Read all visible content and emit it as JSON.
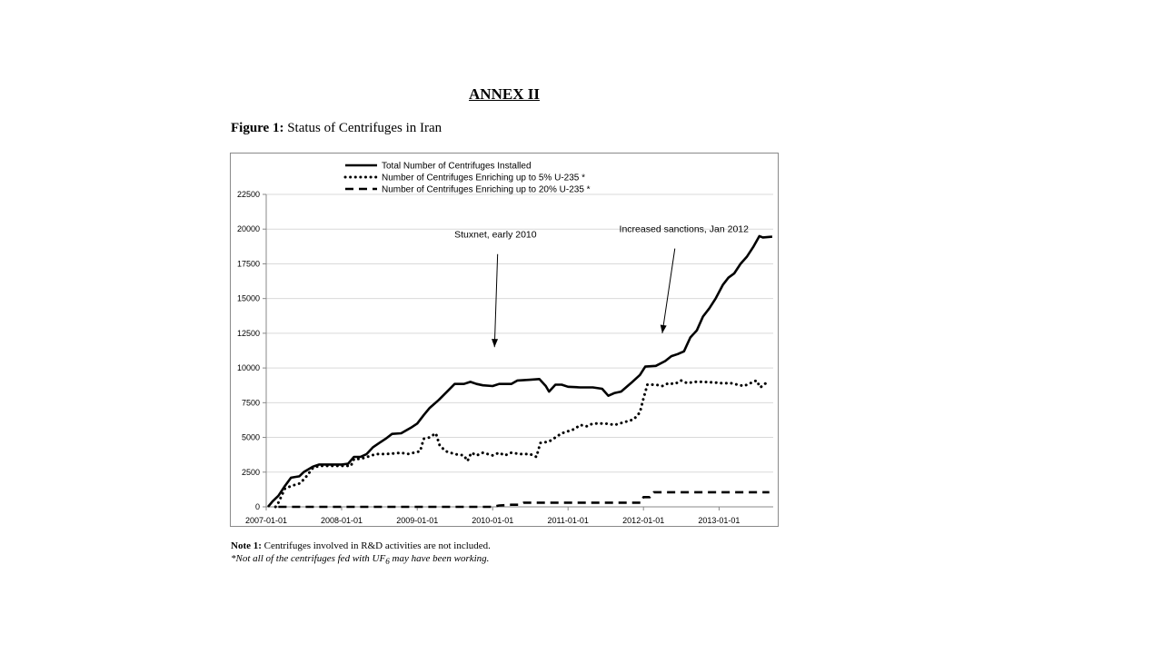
{
  "heading": "ANNEX II",
  "figure": {
    "label": "Figure 1:",
    "title": "Status of Centrifuges in Iran"
  },
  "notes": {
    "note1_label": "Note 1:",
    "note1_text": "Centrifuges involved in R&D activities are not included.",
    "footnote_a": "*Not all of the centrifuges fed with UF",
    "footnote_sub": "6",
    "footnote_b": "may have been working."
  },
  "chart_data": {
    "type": "line",
    "grid": true,
    "legend_position": "top-left",
    "ylim": [
      0,
      22500
    ],
    "yticks": [
      0,
      2500,
      5000,
      7500,
      10000,
      12500,
      15000,
      17500,
      20000,
      22500
    ],
    "xlim": [
      "2007-01-01",
      "2013-09-20"
    ],
    "xticks": [
      "2007-01-01",
      "2008-01-01",
      "2009-01-01",
      "2010-01-01",
      "2011-01-01",
      "2012-01-01",
      "2013-01-01"
    ],
    "series": [
      {
        "name": "Total Number of Centrifuges Installed",
        "style": "solid",
        "points": [
          [
            "2007-01-10",
            0
          ],
          [
            "2007-02-01",
            400
          ],
          [
            "2007-03-01",
            800
          ],
          [
            "2007-04-01",
            1500
          ],
          [
            "2007-05-01",
            2100
          ],
          [
            "2007-06-10",
            2200
          ],
          [
            "2007-07-01",
            2500
          ],
          [
            "2007-08-15",
            2900
          ],
          [
            "2007-09-15",
            3050
          ],
          [
            "2007-11-01",
            3050
          ],
          [
            "2008-01-01",
            3050
          ],
          [
            "2008-02-01",
            3100
          ],
          [
            "2008-03-01",
            3600
          ],
          [
            "2008-04-01",
            3600
          ],
          [
            "2008-05-01",
            3800
          ],
          [
            "2008-06-01",
            4300
          ],
          [
            "2008-07-01",
            4600
          ],
          [
            "2008-08-01",
            4900
          ],
          [
            "2008-09-01",
            5250
          ],
          [
            "2008-10-15",
            5300
          ],
          [
            "2008-12-01",
            5700
          ],
          [
            "2009-01-01",
            6000
          ],
          [
            "2009-02-01",
            6600
          ],
          [
            "2009-03-01",
            7100
          ],
          [
            "2009-04-15",
            7700
          ],
          [
            "2009-06-01",
            8400
          ],
          [
            "2009-07-01",
            8850
          ],
          [
            "2009-08-15",
            8850
          ],
          [
            "2009-09-15",
            9000
          ],
          [
            "2009-10-15",
            8850
          ],
          [
            "2009-11-15",
            8750
          ],
          [
            "2010-01-01",
            8700
          ],
          [
            "2010-02-01",
            8850
          ],
          [
            "2010-04-01",
            8850
          ],
          [
            "2010-05-01",
            9100
          ],
          [
            "2010-07-01",
            9150
          ],
          [
            "2010-08-15",
            9200
          ],
          [
            "2010-09-15",
            8700
          ],
          [
            "2010-10-01",
            8300
          ],
          [
            "2010-11-01",
            8800
          ],
          [
            "2010-12-01",
            8800
          ],
          [
            "2011-01-01",
            8650
          ],
          [
            "2011-03-01",
            8600
          ],
          [
            "2011-05-01",
            8600
          ],
          [
            "2011-06-15",
            8500
          ],
          [
            "2011-07-15",
            8000
          ],
          [
            "2011-08-15",
            8200
          ],
          [
            "2011-09-15",
            8300
          ],
          [
            "2011-11-01",
            8900
          ],
          [
            "2011-12-15",
            9500
          ],
          [
            "2012-01-10",
            10100
          ],
          [
            "2012-03-01",
            10150
          ],
          [
            "2012-04-15",
            10500
          ],
          [
            "2012-05-15",
            10850
          ],
          [
            "2012-06-15",
            11000
          ],
          [
            "2012-07-15",
            11200
          ],
          [
            "2012-08-15",
            12200
          ],
          [
            "2012-09-15",
            12700
          ],
          [
            "2012-10-15",
            13700
          ],
          [
            "2012-11-15",
            14300
          ],
          [
            "2012-12-15",
            15000
          ],
          [
            "2013-01-20",
            16000
          ],
          [
            "2013-02-15",
            16500
          ],
          [
            "2013-03-15",
            16800
          ],
          [
            "2013-04-15",
            17500
          ],
          [
            "2013-05-15",
            18000
          ],
          [
            "2013-06-15",
            18700
          ],
          [
            "2013-07-15",
            19500
          ],
          [
            "2013-08-01",
            19400
          ],
          [
            "2013-09-15",
            19450
          ]
        ]
      },
      {
        "name": "Number of Centrifuges Enriching up to 5% U-235 *",
        "style": "dotted",
        "points": [
          [
            "2007-02-15",
            0
          ],
          [
            "2007-03-01",
            300
          ],
          [
            "2007-04-01",
            1300
          ],
          [
            "2007-05-01",
            1500
          ],
          [
            "2007-06-15",
            1700
          ],
          [
            "2007-07-15",
            2200
          ],
          [
            "2007-08-15",
            2800
          ],
          [
            "2007-09-15",
            2950
          ],
          [
            "2007-11-01",
            2950
          ],
          [
            "2008-01-01",
            2950
          ],
          [
            "2008-02-15",
            2950
          ],
          [
            "2008-03-01",
            3450
          ],
          [
            "2008-04-01",
            3450
          ],
          [
            "2008-05-15",
            3650
          ],
          [
            "2008-06-15",
            3800
          ],
          [
            "2008-08-01",
            3800
          ],
          [
            "2008-09-15",
            3850
          ],
          [
            "2008-10-15",
            3900
          ],
          [
            "2008-11-15",
            3800
          ],
          [
            "2008-12-15",
            3900
          ],
          [
            "2009-01-15",
            4000
          ],
          [
            "2009-02-01",
            4900
          ],
          [
            "2009-03-01",
            5000
          ],
          [
            "2009-04-01",
            5300
          ],
          [
            "2009-04-20",
            4400
          ],
          [
            "2009-05-20",
            4000
          ],
          [
            "2009-07-01",
            3800
          ],
          [
            "2009-08-15",
            3700
          ],
          [
            "2009-09-01",
            3300
          ],
          [
            "2009-09-20",
            3900
          ],
          [
            "2009-10-15",
            3700
          ],
          [
            "2009-11-15",
            3900
          ],
          [
            "2010-01-01",
            3700
          ],
          [
            "2010-02-01",
            3900
          ],
          [
            "2010-03-01",
            3700
          ],
          [
            "2010-04-01",
            3900
          ],
          [
            "2010-05-15",
            3800
          ],
          [
            "2010-07-01",
            3800
          ],
          [
            "2010-08-01",
            3600
          ],
          [
            "2010-08-20",
            4600
          ],
          [
            "2010-10-01",
            4700
          ],
          [
            "2010-11-01",
            5000
          ],
          [
            "2010-12-01",
            5300
          ],
          [
            "2011-02-01",
            5600
          ],
          [
            "2011-03-01",
            5900
          ],
          [
            "2011-04-01",
            5800
          ],
          [
            "2011-05-01",
            6000
          ],
          [
            "2011-07-01",
            6000
          ],
          [
            "2011-08-15",
            5900
          ],
          [
            "2011-10-01",
            6100
          ],
          [
            "2011-11-15",
            6300
          ],
          [
            "2011-12-15",
            6800
          ],
          [
            "2012-01-01",
            7800
          ],
          [
            "2012-01-20",
            8800
          ],
          [
            "2012-03-01",
            8800
          ],
          [
            "2012-04-01",
            8700
          ],
          [
            "2012-05-01",
            8900
          ],
          [
            "2012-06-01",
            8850
          ],
          [
            "2012-07-01",
            9100
          ],
          [
            "2012-08-01",
            8900
          ],
          [
            "2012-09-01",
            9000
          ],
          [
            "2012-10-15",
            9000
          ],
          [
            "2012-12-15",
            8950
          ],
          [
            "2013-01-15",
            8900
          ],
          [
            "2013-03-01",
            8900
          ],
          [
            "2013-04-01",
            8800
          ],
          [
            "2013-05-01",
            8700
          ],
          [
            "2013-06-01",
            8900
          ],
          [
            "2013-07-01",
            9100
          ],
          [
            "2013-07-20",
            8600
          ],
          [
            "2013-08-15",
            8900
          ]
        ]
      },
      {
        "name": "Number of Centrifuges Enriching up to 20% U-235 *",
        "style": "dashed",
        "points": [
          [
            "2007-03-01",
            0
          ],
          [
            "2010-01-01",
            0
          ],
          [
            "2010-02-01",
            100
          ],
          [
            "2010-04-01",
            150
          ],
          [
            "2010-05-10",
            150
          ],
          [
            "2010-06-01",
            300
          ],
          [
            "2011-12-20",
            300
          ],
          [
            "2012-01-01",
            700
          ],
          [
            "2012-02-01",
            700
          ],
          [
            "2012-02-20",
            1050
          ],
          [
            "2013-09-01",
            1050
          ]
        ]
      }
    ],
    "annotations": [
      {
        "text": "Stuxnet, early 2010",
        "text_at": [
          "2010-01-15",
          19400
        ],
        "arrow_from": [
          "2010-01-25",
          18200
        ],
        "arrow_to": [
          "2010-01-10",
          11500
        ]
      },
      {
        "text": "Increased sanctions, Jan 2012",
        "text_at": [
          "2012-07-15",
          19800
        ],
        "arrow_from": [
          "2012-06-01",
          18600
        ],
        "arrow_to": [
          "2012-04-01",
          12500
        ]
      }
    ]
  }
}
